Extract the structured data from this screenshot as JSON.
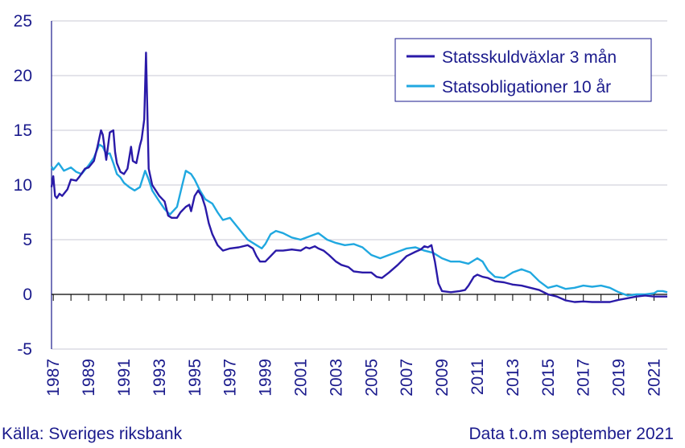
{
  "source": "Källa: Sveriges riksbank",
  "note": "Data t.o.m september 2021",
  "colors": {
    "text": "#1a1a8c",
    "grid": "#c8c8d6",
    "axis": "#1a1a8c"
  },
  "chart_data": {
    "type": "line",
    "title": "",
    "xlabel": "",
    "ylabel": "",
    "ylim": [
      -5,
      25
    ],
    "yticks": [
      -5,
      0,
      5,
      10,
      15,
      20,
      25
    ],
    "xlim": [
      1986.9,
      2021.75
    ],
    "xticks": [
      "1987",
      "1989",
      "1991",
      "1993",
      "1995",
      "1997",
      "1999",
      "2001",
      "2003",
      "2005",
      "2007",
      "2009",
      "2011",
      "2013",
      "2015",
      "2017",
      "2019",
      "2021"
    ],
    "grid": true,
    "legend": "top-right",
    "series": [
      {
        "name": "Statsskuldväxlar 3 mån",
        "color": "#2a1aa8",
        "x": [
          1986.9,
          1987.0,
          1987.1,
          1987.2,
          1987.35,
          1987.5,
          1987.8,
          1988.0,
          1988.3,
          1988.5,
          1988.8,
          1989.0,
          1989.3,
          1989.5,
          1989.7,
          1989.8,
          1990.0,
          1990.2,
          1990.4,
          1990.5,
          1990.6,
          1990.8,
          1991.0,
          1991.2,
          1991.4,
          1991.5,
          1991.7,
          1991.9,
          1992.0,
          1992.15,
          1992.25,
          1992.32,
          1992.4,
          1992.6,
          1992.8,
          1993.0,
          1993.3,
          1993.5,
          1993.7,
          1994.0,
          1994.2,
          1994.5,
          1994.7,
          1994.8,
          1995.0,
          1995.2,
          1995.4,
          1995.6,
          1995.8,
          1996.0,
          1996.3,
          1996.6,
          1997.0,
          1997.5,
          1998.0,
          1998.3,
          1998.5,
          1998.7,
          1999.0,
          1999.3,
          1999.6,
          2000.0,
          2000.5,
          2001.0,
          2001.3,
          2001.5,
          2001.8,
          2002.0,
          2002.3,
          2002.6,
          2003.0,
          2003.3,
          2003.7,
          2004.0,
          2004.5,
          2005.0,
          2005.3,
          2005.6,
          2006.0,
          2006.5,
          2007.0,
          2007.5,
          2007.8,
          2008.0,
          2008.2,
          2008.4,
          2008.6,
          2008.8,
          2009.0,
          2009.5,
          2010.0,
          2010.3,
          2010.5,
          2010.8,
          2011.0,
          2011.3,
          2011.6,
          2012.0,
          2012.5,
          2013.0,
          2013.5,
          2014.0,
          2014.5,
          2015.0,
          2015.5,
          2016.0,
          2016.5,
          2017.0,
          2017.5,
          2018.0,
          2018.5,
          2019.0,
          2019.5,
          2020.0,
          2020.5,
          2021.0,
          2021.5,
          2021.75
        ],
        "values": [
          9.8,
          10.8,
          9.0,
          8.8,
          9.2,
          9.0,
          9.6,
          10.5,
          10.4,
          10.8,
          11.5,
          11.6,
          12.2,
          13.5,
          15.0,
          14.6,
          12.3,
          14.8,
          15.0,
          13.0,
          12.0,
          11.2,
          11.0,
          11.5,
          13.5,
          12.2,
          12.0,
          13.6,
          14.2,
          16.0,
          22.1,
          17.0,
          11.5,
          10.0,
          9.5,
          9.0,
          8.5,
          7.2,
          7.0,
          7.0,
          7.5,
          8.0,
          8.2,
          7.6,
          9.0,
          9.5,
          9.0,
          8.0,
          6.5,
          5.5,
          4.5,
          4.0,
          4.2,
          4.3,
          4.5,
          4.2,
          3.5,
          3.0,
          3.0,
          3.5,
          4.0,
          4.0,
          4.1,
          4.0,
          4.3,
          4.2,
          4.4,
          4.2,
          4.0,
          3.6,
          3.0,
          2.7,
          2.5,
          2.1,
          2.0,
          2.0,
          1.6,
          1.5,
          2.0,
          2.7,
          3.5,
          3.9,
          4.1,
          4.4,
          4.3,
          4.5,
          3.0,
          1.0,
          0.3,
          0.2,
          0.3,
          0.4,
          0.8,
          1.6,
          1.8,
          1.6,
          1.5,
          1.2,
          1.1,
          0.9,
          0.8,
          0.6,
          0.4,
          0.0,
          -0.2,
          -0.55,
          -0.7,
          -0.65,
          -0.7,
          -0.7,
          -0.7,
          -0.5,
          -0.35,
          -0.2,
          -0.1,
          -0.2,
          -0.2,
          -0.2
        ]
      },
      {
        "name": "Statsobligationer 10 år",
        "color": "#20a8e0",
        "x": [
          1986.9,
          1987.0,
          1987.3,
          1987.6,
          1988.0,
          1988.3,
          1988.6,
          1989.0,
          1989.3,
          1989.6,
          1989.8,
          1990.0,
          1990.2,
          1990.4,
          1990.6,
          1990.8,
          1991.0,
          1991.3,
          1991.6,
          1991.9,
          1992.2,
          1992.4,
          1992.6,
          1992.8,
          1993.0,
          1993.3,
          1993.6,
          1994.0,
          1994.3,
          1994.5,
          1994.8,
          1995.0,
          1995.3,
          1995.6,
          1996.0,
          1996.3,
          1996.6,
          1997.0,
          1997.5,
          1998.0,
          1998.5,
          1998.8,
          1999.0,
          1999.3,
          1999.6,
          2000.0,
          2000.5,
          2001.0,
          2001.5,
          2002.0,
          2002.5,
          2003.0,
          2003.5,
          2004.0,
          2004.5,
          2005.0,
          2005.5,
          2006.0,
          2006.5,
          2007.0,
          2007.5,
          2008.0,
          2008.5,
          2009.0,
          2009.5,
          2010.0,
          2010.5,
          2011.0,
          2011.3,
          2011.6,
          2012.0,
          2012.5,
          2013.0,
          2013.5,
          2014.0,
          2014.5,
          2015.0,
          2015.5,
          2016.0,
          2016.5,
          2017.0,
          2017.5,
          2018.0,
          2018.5,
          2019.0,
          2019.5,
          2020.0,
          2020.5,
          2021.0,
          2021.2,
          2021.5,
          2021.75
        ],
        "values": [
          11.7,
          11.4,
          12.0,
          11.3,
          11.6,
          11.2,
          11.0,
          11.8,
          12.5,
          13.7,
          13.5,
          12.8,
          12.9,
          12.0,
          11.0,
          10.7,
          10.2,
          9.8,
          9.5,
          9.8,
          11.3,
          10.5,
          9.5,
          9.0,
          8.5,
          7.8,
          7.3,
          8.0,
          10.0,
          11.3,
          11.0,
          10.5,
          9.5,
          8.7,
          8.3,
          7.5,
          6.8,
          7.0,
          6.0,
          5.0,
          4.5,
          4.2,
          4.6,
          5.5,
          5.8,
          5.6,
          5.2,
          5.0,
          5.3,
          5.6,
          5.0,
          4.7,
          4.5,
          4.6,
          4.3,
          3.6,
          3.3,
          3.6,
          3.9,
          4.2,
          4.3,
          4.0,
          3.8,
          3.3,
          3.0,
          3.0,
          2.8,
          3.3,
          3.0,
          2.2,
          1.6,
          1.5,
          2.0,
          2.3,
          2.0,
          1.2,
          0.6,
          0.8,
          0.5,
          0.6,
          0.8,
          0.7,
          0.8,
          0.6,
          0.2,
          -0.1,
          0.0,
          0.0,
          0.1,
          0.3,
          0.3,
          0.2
        ]
      }
    ]
  }
}
